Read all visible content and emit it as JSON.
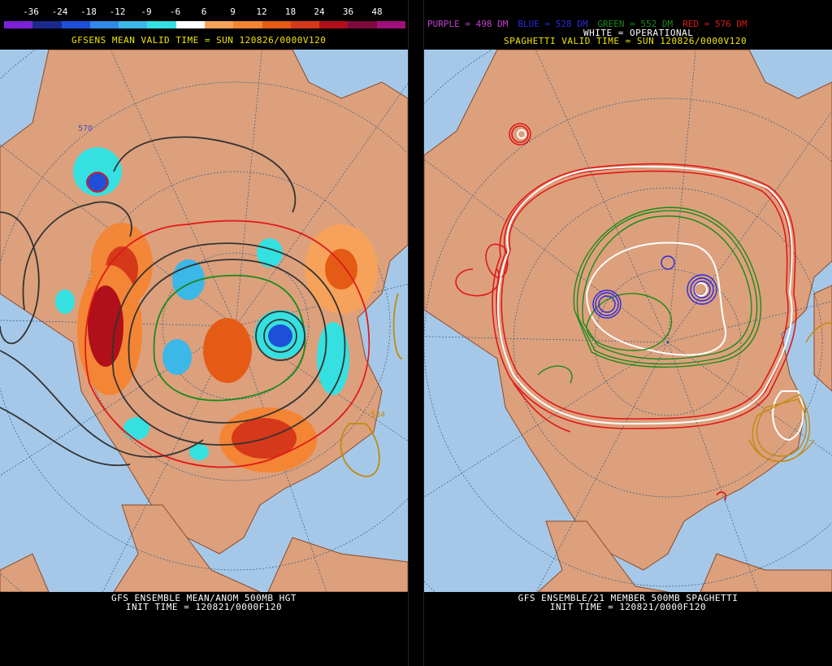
{
  "left": {
    "scale_labels": [
      "-36",
      "-24",
      "-18",
      "-12",
      "-9",
      "-6",
      "6",
      "9",
      "12",
      "18",
      "24",
      "36",
      "48"
    ],
    "scale_colors": [
      "#7a22d6",
      "#1a2a8c",
      "#1f4fd8",
      "#2f89e8",
      "#3bb7e8",
      "#35e0e0",
      "#ffffff",
      "#f7a25a",
      "#f38534",
      "#e55b16",
      "#d6381a",
      "#b0101a",
      "#7e0a3c",
      "#a0107a"
    ],
    "valid_line": "GFSENS MEAN VALID TIME = SUN 120826/0000V120",
    "footer_line1": "GFS ENSEMBLE MEAN/ANOM 500MB HGT",
    "footer_line2": "INIT TIME = 120821/0000F120",
    "contour_labels": [
      "570",
      "534"
    ]
  },
  "right": {
    "legend": [
      {
        "text": "PURPLE = 498 DM",
        "color": "#c040d0"
      },
      {
        "text": "BLUE = 528 DM",
        "color": "#2a2ae0"
      },
      {
        "text": "GREEN = 552 DM",
        "color": "#1a8a1a"
      },
      {
        "text": "RED = 576 DM",
        "color": "#e01818"
      }
    ],
    "legend_line2": "WHITE = OPERATIONAL",
    "valid_line": "SPAGHETTI VALID TIME = SUN 120826/0000V120",
    "footer_line1": "GFS ENSEMBLE/21 MEMBER 500MB SPAGHETTI",
    "footer_line2": "INIT TIME = 120821/0000F120"
  },
  "colors": {
    "ocean": "#a6c8e8",
    "land": "#dca07c",
    "border": "#8a4a2a",
    "text_yellow": "#f0e400"
  }
}
